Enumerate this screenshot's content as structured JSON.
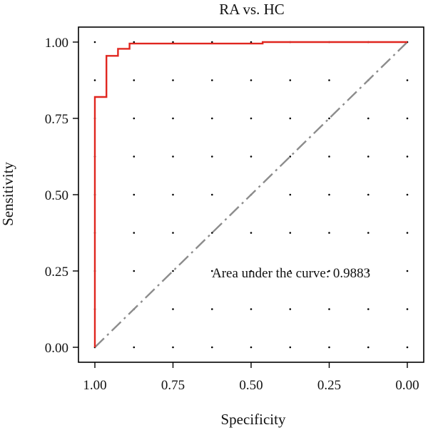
{
  "chart_data": {
    "type": "line",
    "title": "RA vs. HC",
    "xlabel": "Specificity",
    "ylabel": "Sensitivity",
    "x_reversed": true,
    "xlim": [
      1.0,
      0.0
    ],
    "ylim": [
      0.0,
      1.0
    ],
    "x_ticks": [
      "1.00",
      "0.75",
      "0.50",
      "0.25",
      "0.00"
    ],
    "y_ticks": [
      "0.00",
      "0.25",
      "0.50",
      "0.75",
      "1.00"
    ],
    "grid": "dotted",
    "annotation": "Area under the curve: 0.9883",
    "colors": {
      "roc": "#e0261f",
      "reference": "#8c8c8c"
    },
    "series": [
      {
        "specificity": [
          1.0,
          1.0,
          0.963,
          0.963,
          0.963,
          0.926,
          0.926,
          0.889,
          0.889,
          0.463,
          0.463,
          0.0
        ],
        "sensitivity": [
          0.0,
          0.82,
          0.82,
          0.883,
          0.955,
          0.955,
          0.978,
          0.978,
          0.995,
          0.995,
          1.0,
          1.0
        ]
      }
    ],
    "reference_line": {
      "specificity": [
        1.0,
        0.0
      ],
      "sensitivity": [
        0.0,
        1.0
      ]
    }
  }
}
